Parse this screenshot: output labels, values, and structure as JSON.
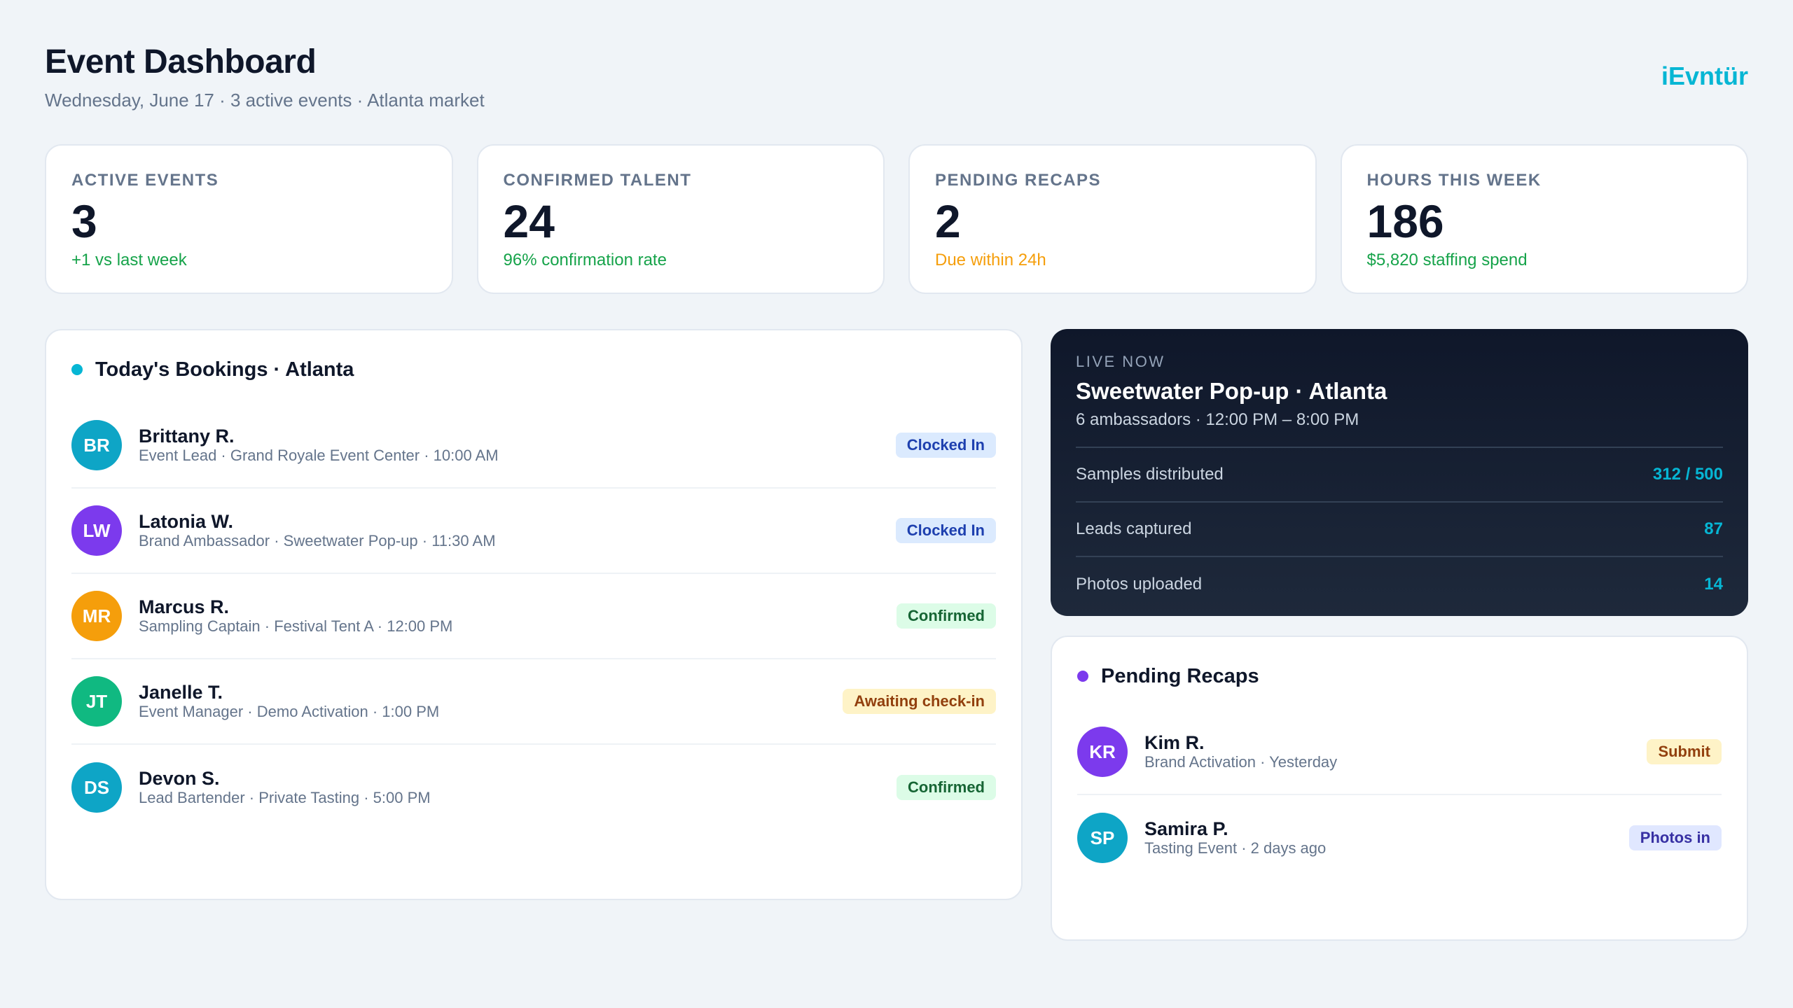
{
  "header": {
    "title": "Event Dashboard",
    "subtitle": "Wednesday, June 17 · 3 active events · Atlanta market",
    "brand": "iEvntür"
  },
  "stats": [
    {
      "label": "ACTIVE EVENTS",
      "value": "3",
      "sub": "+1 vs last week",
      "sub_color": "green"
    },
    {
      "label": "CONFIRMED TALENT",
      "value": "24",
      "sub": "96% confirmation rate",
      "sub_color": "green"
    },
    {
      "label": "PENDING RECAPS",
      "value": "2",
      "sub": "Due within 24h",
      "sub_color": "amber"
    },
    {
      "label": "HOURS THIS WEEK",
      "value": "186",
      "sub": "$5,820 staffing spend",
      "sub_color": "green"
    }
  ],
  "bookings": {
    "title": "Today's Bookings · Atlanta",
    "dot_color": "#06b6d4",
    "rows": [
      {
        "initials": "BR",
        "name": "Brittany R.",
        "meta": "Event Lead · Grand Royale Event Center · 10:00 AM",
        "status": "Clocked In",
        "avatar_color": "#0ea5c6"
      },
      {
        "initials": "LW",
        "name": "Latonia W.",
        "meta": "Brand Ambassador · Sweetwater Pop-up · 11:30 AM",
        "status": "Clocked In",
        "avatar_color": "#7c3aed"
      },
      {
        "initials": "MR",
        "name": "Marcus R.",
        "meta": "Sampling Captain · Festival Tent A · 12:00 PM",
        "status": "Confirmed",
        "avatar_color": "#f59e0b"
      },
      {
        "initials": "JT",
        "name": "Janelle T.",
        "meta": "Event Manager · Demo Activation · 1:00 PM",
        "status": "Awaiting check-in",
        "avatar_color": "#10b981"
      },
      {
        "initials": "DS",
        "name": "Devon S.",
        "meta": "Lead Bartender · Private Tasting · 5:00 PM",
        "status": "Confirmed",
        "avatar_color": "#0ea5c6"
      }
    ]
  },
  "live": {
    "tag": "LIVE NOW",
    "title": "Sweetwater Pop-up · Atlanta",
    "subtitle": "6 ambassadors · 12:00 PM – 8:00 PM",
    "metrics": [
      {
        "label": "Samples distributed",
        "value": "312 / 500"
      },
      {
        "label": "Leads captured",
        "value": "87"
      },
      {
        "label": "Photos uploaded",
        "value": "14"
      }
    ]
  },
  "recaps": {
    "title": "Pending Recaps",
    "dot_color": "#7c3aed",
    "rows": [
      {
        "initials": "KR",
        "name": "Kim R.",
        "meta": "Brand Activation · Yesterday",
        "status": "Submit",
        "avatar_color": "#7c3aed"
      },
      {
        "initials": "SP",
        "name": "Samira P.",
        "meta": "Tasting Event · 2 days ago",
        "status": "Photos in",
        "avatar_color": "#0ea5c6"
      }
    ]
  }
}
